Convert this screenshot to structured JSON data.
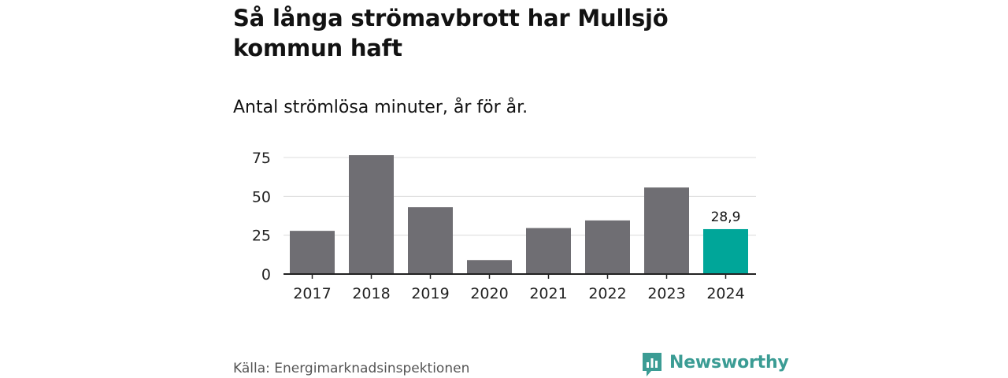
{
  "title": "Så långa strömavbrott har Mullsjö kommun haft",
  "subtitle": "Antal strömlösa minuter, år för år.",
  "source": "Källa: Energimarknadsinspektionen",
  "brand": {
    "name": "Newsworthy",
    "icon": "newsworthy-logo-icon",
    "color": "#3b9c94"
  },
  "chart_data": {
    "type": "bar",
    "categories": [
      "2017",
      "2018",
      "2019",
      "2020",
      "2021",
      "2022",
      "2023",
      "2024"
    ],
    "values": [
      27.8,
      76.5,
      43.0,
      9.0,
      29.6,
      34.5,
      55.7,
      28.9
    ],
    "data_labels": [
      null,
      null,
      null,
      null,
      null,
      null,
      null,
      "28,9"
    ],
    "yticks": [
      0,
      25,
      50,
      75
    ],
    "ylim": [
      0,
      80
    ],
    "grid": true,
    "colors": {
      "default": "#6f6e73",
      "highlight": "#00a699",
      "grid": "#dcdcdc",
      "axis": "#222222"
    },
    "highlight_index": 7
  }
}
